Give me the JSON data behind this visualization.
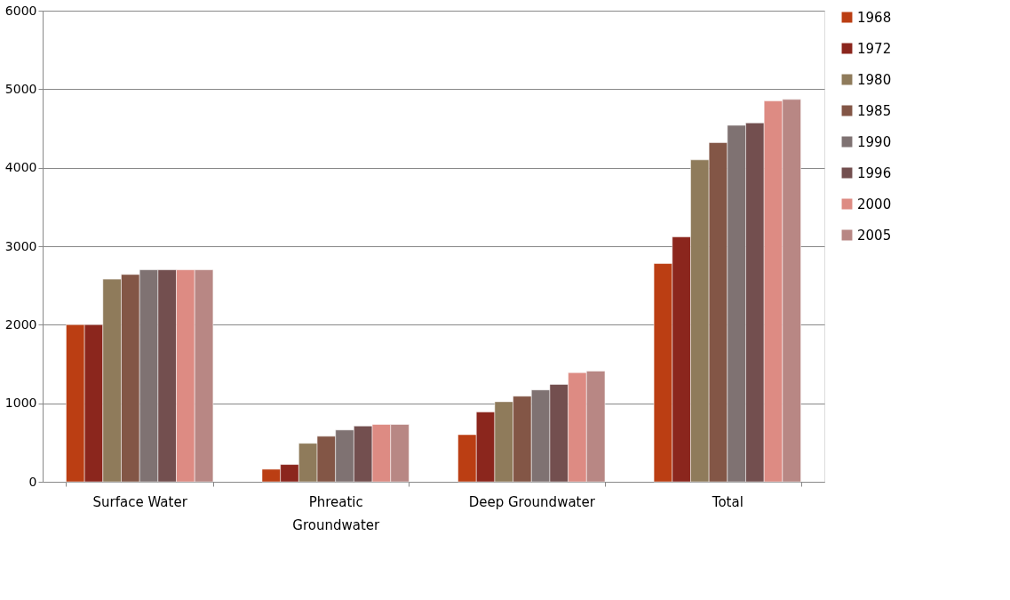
{
  "chart_data": {
    "type": "bar",
    "categories": [
      "Surface Water",
      "Phreatic Groundwater",
      "Deep Groundwater",
      "Total"
    ],
    "series": [
      {
        "name": "1968",
        "color": "#bb3e13",
        "values": [
          2000,
          160,
          600,
          2780
        ]
      },
      {
        "name": "1972",
        "color": "#8b261d",
        "values": [
          2000,
          220,
          890,
          3120
        ]
      },
      {
        "name": "1980",
        "color": "#8f7b5b",
        "values": [
          2580,
          490,
          1020,
          4100
        ]
      },
      {
        "name": "1985",
        "color": "#835646",
        "values": [
          2640,
          580,
          1090,
          4320
        ]
      },
      {
        "name": "1990",
        "color": "#7f7272",
        "values": [
          2700,
          660,
          1170,
          4540
        ]
      },
      {
        "name": "1996",
        "color": "#734f4f",
        "values": [
          2700,
          710,
          1240,
          4570
        ]
      },
      {
        "name": "2000",
        "color": "#dd8b83",
        "values": [
          2700,
          730,
          1390,
          4850
        ]
      },
      {
        "name": "2005",
        "color": "#b88784",
        "values": [
          2700,
          730,
          1410,
          4870
        ]
      }
    ],
    "ylim": [
      0,
      6000
    ],
    "yticks": [
      0,
      1000,
      2000,
      3000,
      4000,
      5000,
      6000
    ],
    "grid": "y",
    "legend": "right"
  }
}
